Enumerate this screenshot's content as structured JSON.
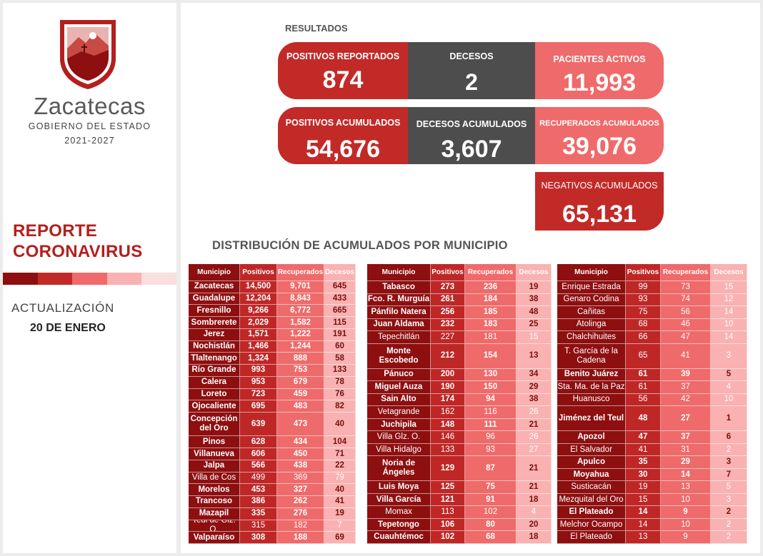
{
  "brand": {
    "name": "Zacatecas",
    "subtitle": "GOBIERNO DEL ESTADO",
    "years": "2021-2027"
  },
  "report": {
    "line1": "REPORTE",
    "line2": "CORONAVIRUS",
    "update_label": "ACTUALIZACIÓN",
    "update_date": "20 DE ENERO"
  },
  "colors": {
    "dark_red": "#8e0f10",
    "red": "#c22a28",
    "medium_red": "#ef6a6a",
    "light_red": "#f9b1b1",
    "dark_gray": "#4d4d4d"
  },
  "results": {
    "label": "RESULTADOS",
    "positivos_reportados": {
      "label": "POSITIVOS REPORTADOS",
      "value": "874"
    },
    "decesos": {
      "label": "DECESOS",
      "value": "2"
    },
    "pacientes_activos": {
      "label": "PACIENTES ACTIVOS",
      "value": "11,993"
    },
    "positivos_acumulados": {
      "label": "POSITIVOS ACUMULADOS",
      "value": "54,676"
    },
    "decesos_acumulados": {
      "label": "DECESOS ACUMULADOS",
      "value": "3,607"
    },
    "recuperados_acumulados": {
      "label": "RECUPERADOS ACUMULADOS",
      "value": "39,076"
    },
    "negativos_acumulados": {
      "label": "NEGATIVOS ACUMULADOS",
      "value": "65,131"
    }
  },
  "distribution": {
    "title": "DISTRIBUCIÓN DE ACUMULADOS POR MUNICIPIO",
    "headers": [
      "Municipio",
      "Positivos",
      "Recuperados",
      "Decesos"
    ],
    "tables": [
      {
        "rows": [
          {
            "name": "Zacatecas",
            "pos": "14,500",
            "rec": "9,701",
            "dec": "645",
            "bold": true,
            "lines": 1
          },
          {
            "name": "Guadalupe",
            "pos": "12,204",
            "rec": "8,843",
            "dec": "433",
            "bold": true,
            "lines": 1
          },
          {
            "name": "Fresnillo",
            "pos": "9,266",
            "rec": "6,772",
            "dec": "665",
            "bold": true,
            "lines": 1
          },
          {
            "name": "Sombrerete",
            "pos": "2,029",
            "rec": "1,582",
            "dec": "115",
            "bold": true,
            "lines": 1
          },
          {
            "name": "Jerez",
            "pos": "1,571",
            "rec": "1,222",
            "dec": "191",
            "bold": true,
            "lines": 1
          },
          {
            "name": "Nochistlán",
            "pos": "1,466",
            "rec": "1,244",
            "dec": "60",
            "bold": true,
            "lines": 1
          },
          {
            "name": "Tlaltenango",
            "pos": "1,324",
            "rec": "888",
            "dec": "58",
            "bold": true,
            "lines": 1
          },
          {
            "name": "Río Grande",
            "pos": "993",
            "rec": "753",
            "dec": "133",
            "bold": true,
            "lines": 1
          },
          {
            "name": "Calera",
            "pos": "953",
            "rec": "679",
            "dec": "78",
            "bold": true,
            "lines": 1
          },
          {
            "name": "Loreto",
            "pos": "723",
            "rec": "459",
            "dec": "76",
            "bold": true,
            "lines": 1
          },
          {
            "name": "Ojocaliente",
            "pos": "695",
            "rec": "483",
            "dec": "82",
            "bold": true,
            "lines": 1
          },
          {
            "name": "Concepción del Oro",
            "pos": "639",
            "rec": "473",
            "dec": "40",
            "bold": true,
            "lines": 2
          },
          {
            "name": "Pinos",
            "pos": "628",
            "rec": "434",
            "dec": "104",
            "bold": true,
            "lines": 1
          },
          {
            "name": "Villanueva",
            "pos": "606",
            "rec": "450",
            "dec": "71",
            "bold": true,
            "lines": 1
          },
          {
            "name": "Jalpa",
            "pos": "566",
            "rec": "438",
            "dec": "22",
            "bold": true,
            "lines": 1
          },
          {
            "name": "Villa de Cos",
            "pos": "499",
            "rec": "369",
            "dec": "79",
            "bold": false,
            "lines": 1
          },
          {
            "name": "Morelos",
            "pos": "453",
            "rec": "327",
            "dec": "40",
            "bold": true,
            "lines": 1
          },
          {
            "name": "Trancoso",
            "pos": "386",
            "rec": "262",
            "dec": "41",
            "bold": true,
            "lines": 1
          },
          {
            "name": "Mazapil",
            "pos": "335",
            "rec": "276",
            "dec": "19",
            "bold": true,
            "lines": 1
          },
          {
            "name": "Teúl de Glz. O.",
            "pos": "315",
            "rec": "182",
            "dec": "7",
            "bold": false,
            "lines": 1
          },
          {
            "name": "Valparaíso",
            "pos": "308",
            "rec": "188",
            "dec": "69",
            "bold": true,
            "lines": 1
          }
        ]
      },
      {
        "rows": [
          {
            "name": "Tabasco",
            "pos": "273",
            "rec": "236",
            "dec": "19",
            "bold": true,
            "lines": 1
          },
          {
            "name": "Fco. R. Murguía",
            "pos": "261",
            "rec": "184",
            "dec": "38",
            "bold": true,
            "lines": 1
          },
          {
            "name": "Pánfilo Natera",
            "pos": "256",
            "rec": "185",
            "dec": "48",
            "bold": true,
            "lines": 1
          },
          {
            "name": "Juan Aldama",
            "pos": "232",
            "rec": "183",
            "dec": "25",
            "bold": true,
            "lines": 1
          },
          {
            "name": "Tepechitlán",
            "pos": "227",
            "rec": "181",
            "dec": "15",
            "bold": false,
            "lines": 1
          },
          {
            "name": "Monte Escobedo",
            "pos": "212",
            "rec": "154",
            "dec": "13",
            "bold": true,
            "lines": 2
          },
          {
            "name": "Pánuco",
            "pos": "200",
            "rec": "130",
            "dec": "34",
            "bold": true,
            "lines": 1
          },
          {
            "name": "Miguel Auza",
            "pos": "190",
            "rec": "150",
            "dec": "29",
            "bold": true,
            "lines": 1
          },
          {
            "name": "Sain Alto",
            "pos": "174",
            "rec": "94",
            "dec": "38",
            "bold": true,
            "lines": 1
          },
          {
            "name": "Vetagrande",
            "pos": "162",
            "rec": "116",
            "dec": "26",
            "bold": false,
            "lines": 1
          },
          {
            "name": "Juchipila",
            "pos": "148",
            "rec": "111",
            "dec": "21",
            "bold": true,
            "lines": 1
          },
          {
            "name": "Villa Glz. O.",
            "pos": "146",
            "rec": "96",
            "dec": "26",
            "bold": false,
            "lines": 1
          },
          {
            "name": "Villa Hidalgo",
            "pos": "133",
            "rec": "93",
            "dec": "27",
            "bold": false,
            "lines": 1
          },
          {
            "name": "Noria de Ángeles",
            "pos": "129",
            "rec": "87",
            "dec": "21",
            "bold": true,
            "lines": 2
          },
          {
            "name": "Luis Moya",
            "pos": "125",
            "rec": "75",
            "dec": "21",
            "bold": true,
            "lines": 1
          },
          {
            "name": "Villa García",
            "pos": "121",
            "rec": "91",
            "dec": "18",
            "bold": true,
            "lines": 1
          },
          {
            "name": "Momax",
            "pos": "113",
            "rec": "102",
            "dec": "4",
            "bold": false,
            "lines": 1
          },
          {
            "name": "Tepetongo",
            "pos": "106",
            "rec": "80",
            "dec": "20",
            "bold": true,
            "lines": 1
          },
          {
            "name": "Cuauhtémoc",
            "pos": "102",
            "rec": "68",
            "dec": "18",
            "bold": true,
            "lines": 1
          }
        ]
      },
      {
        "rows": [
          {
            "name": "Enrique Estrada",
            "pos": "99",
            "rec": "73",
            "dec": "15",
            "bold": false,
            "lines": 1
          },
          {
            "name": "Genaro Codina",
            "pos": "93",
            "rec": "74",
            "dec": "12",
            "bold": false,
            "lines": 1
          },
          {
            "name": "Cañitas",
            "pos": "75",
            "rec": "56",
            "dec": "14",
            "bold": false,
            "lines": 1
          },
          {
            "name": "Atolinga",
            "pos": "68",
            "rec": "46",
            "dec": "10",
            "bold": false,
            "lines": 1
          },
          {
            "name": "Chalchihuites",
            "pos": "66",
            "rec": "47",
            "dec": "14",
            "bold": false,
            "lines": 1
          },
          {
            "name": "T. García de la Cadena",
            "pos": "65",
            "rec": "41",
            "dec": "3",
            "bold": false,
            "lines": 2
          },
          {
            "name": "Benito Juárez",
            "pos": "61",
            "rec": "39",
            "dec": "5",
            "bold": true,
            "lines": 1
          },
          {
            "name": "Sta. Ma. de la Paz",
            "pos": "61",
            "rec": "37",
            "dec": "4",
            "bold": false,
            "lines": 1
          },
          {
            "name": "Huanusco",
            "pos": "56",
            "rec": "42",
            "dec": "10",
            "bold": false,
            "lines": 1
          },
          {
            "name": "Jiménez del Teul",
            "pos": "48",
            "rec": "27",
            "dec": "1",
            "bold": true,
            "lines": 2
          },
          {
            "name": "Apozol",
            "pos": "47",
            "rec": "37",
            "dec": "6",
            "bold": true,
            "lines": 1
          },
          {
            "name": "El Salvador",
            "pos": "41",
            "rec": "31",
            "dec": "2",
            "bold": false,
            "lines": 1
          },
          {
            "name": "Apulco",
            "pos": "35",
            "rec": "29",
            "dec": "3",
            "bold": true,
            "lines": 1
          },
          {
            "name": "Moyahua",
            "pos": "30",
            "rec": "14",
            "dec": "7",
            "bold": true,
            "lines": 1
          },
          {
            "name": "Susticacán",
            "pos": "19",
            "rec": "13",
            "dec": "5",
            "bold": false,
            "lines": 1
          },
          {
            "name": "Mezquital del Oro",
            "pos": "15",
            "rec": "10",
            "dec": "3",
            "bold": false,
            "lines": 1
          },
          {
            "name": "El Plateado",
            "pos": "14",
            "rec": "9",
            "dec": "2",
            "bold": true,
            "lines": 1
          },
          {
            "name": "Melchor Ocampo",
            "pos": "14",
            "rec": "10",
            "dec": "2",
            "bold": false,
            "lines": 1
          },
          {
            "name": "El Plateado",
            "pos": "13",
            "rec": "9",
            "dec": "2",
            "bold": false,
            "lines": 1
          }
        ]
      }
    ]
  }
}
